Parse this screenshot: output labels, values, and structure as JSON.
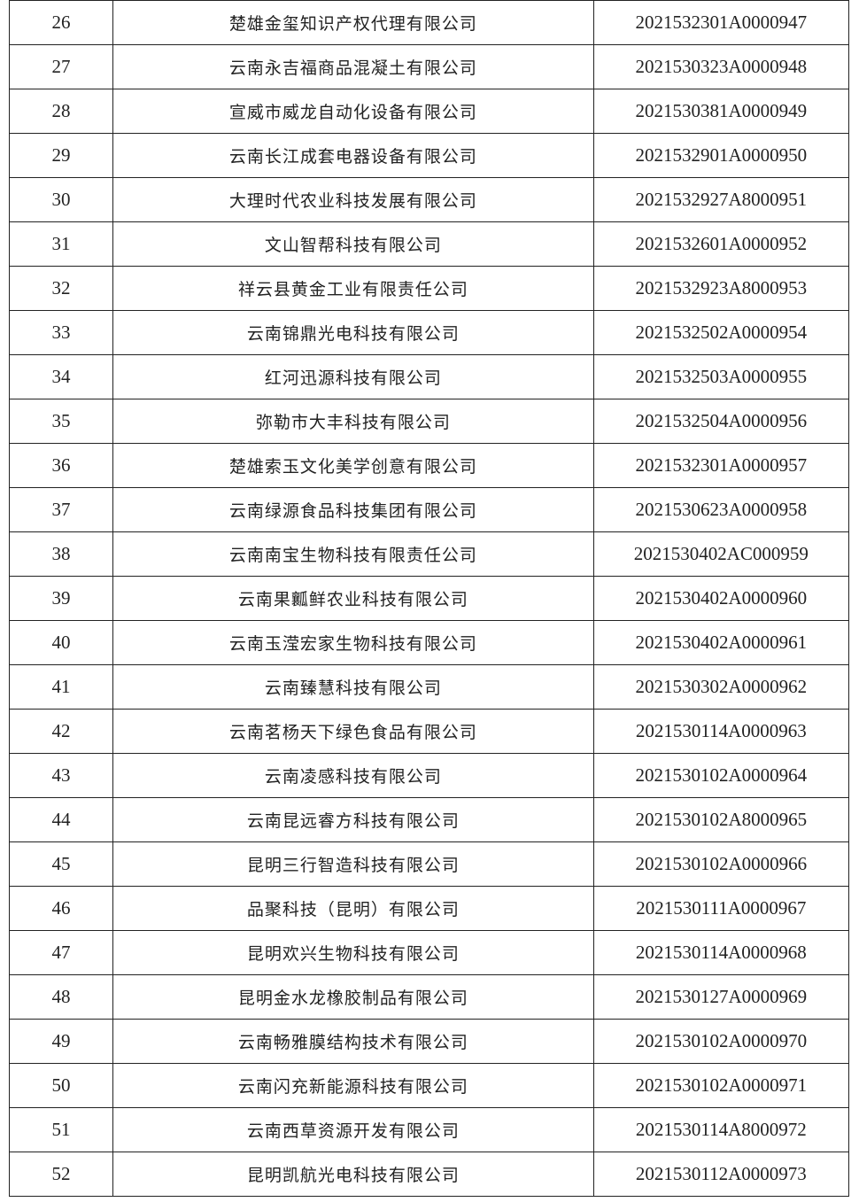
{
  "table": {
    "rows": [
      {
        "no": "26",
        "company": "楚雄金玺知识产权代理有限公司",
        "code": "2021532301A0000947"
      },
      {
        "no": "27",
        "company": "云南永吉福商品混凝土有限公司",
        "code": "2021530323A0000948"
      },
      {
        "no": "28",
        "company": "宣威市威龙自动化设备有限公司",
        "code": "2021530381A0000949"
      },
      {
        "no": "29",
        "company": "云南长江成套电器设备有限公司",
        "code": "2021532901A0000950"
      },
      {
        "no": "30",
        "company": "大理时代农业科技发展有限公司",
        "code": "2021532927A8000951"
      },
      {
        "no": "31",
        "company": "文山智帮科技有限公司",
        "code": "2021532601A0000952"
      },
      {
        "no": "32",
        "company": "祥云县黄金工业有限责任公司",
        "code": "2021532923A8000953"
      },
      {
        "no": "33",
        "company": "云南锦鼎光电科技有限公司",
        "code": "2021532502A0000954"
      },
      {
        "no": "34",
        "company": "红河迅源科技有限公司",
        "code": "2021532503A0000955"
      },
      {
        "no": "35",
        "company": "弥勒市大丰科技有限公司",
        "code": "2021532504A0000956"
      },
      {
        "no": "36",
        "company": "楚雄索玉文化美学创意有限公司",
        "code": "2021532301A0000957"
      },
      {
        "no": "37",
        "company": "云南绿源食品科技集团有限公司",
        "code": "2021530623A0000958"
      },
      {
        "no": "38",
        "company": "云南南宝生物科技有限责任公司",
        "code": "2021530402AC000959"
      },
      {
        "no": "39",
        "company": "云南果瓤鲜农业科技有限公司",
        "code": "2021530402A0000960"
      },
      {
        "no": "40",
        "company": "云南玉滢宏家生物科技有限公司",
        "code": "2021530402A0000961"
      },
      {
        "no": "41",
        "company": "云南臻慧科技有限公司",
        "code": "2021530302A0000962"
      },
      {
        "no": "42",
        "company": "云南茗杨天下绿色食品有限公司",
        "code": "2021530114A0000963"
      },
      {
        "no": "43",
        "company": "云南凌感科技有限公司",
        "code": "2021530102A0000964"
      },
      {
        "no": "44",
        "company": "云南昆远睿方科技有限公司",
        "code": "2021530102A8000965"
      },
      {
        "no": "45",
        "company": "昆明三行智造科技有限公司",
        "code": "2021530102A0000966"
      },
      {
        "no": "46",
        "company": "品聚科技（昆明）有限公司",
        "code": "2021530111A0000967"
      },
      {
        "no": "47",
        "company": "昆明欢兴生物科技有限公司",
        "code": "2021530114A0000968"
      },
      {
        "no": "48",
        "company": "昆明金水龙橡胶制品有限公司",
        "code": "2021530127A0000969"
      },
      {
        "no": "49",
        "company": "云南畅雅膜结构技术有限公司",
        "code": "2021530102A0000970"
      },
      {
        "no": "50",
        "company": "云南闪充新能源科技有限公司",
        "code": "2021530102A0000971"
      },
      {
        "no": "51",
        "company": "云南西草资源开发有限公司",
        "code": "2021530114A8000972"
      },
      {
        "no": "52",
        "company": "昆明凯航光电科技有限公司",
        "code": "2021530112A0000973"
      }
    ]
  }
}
